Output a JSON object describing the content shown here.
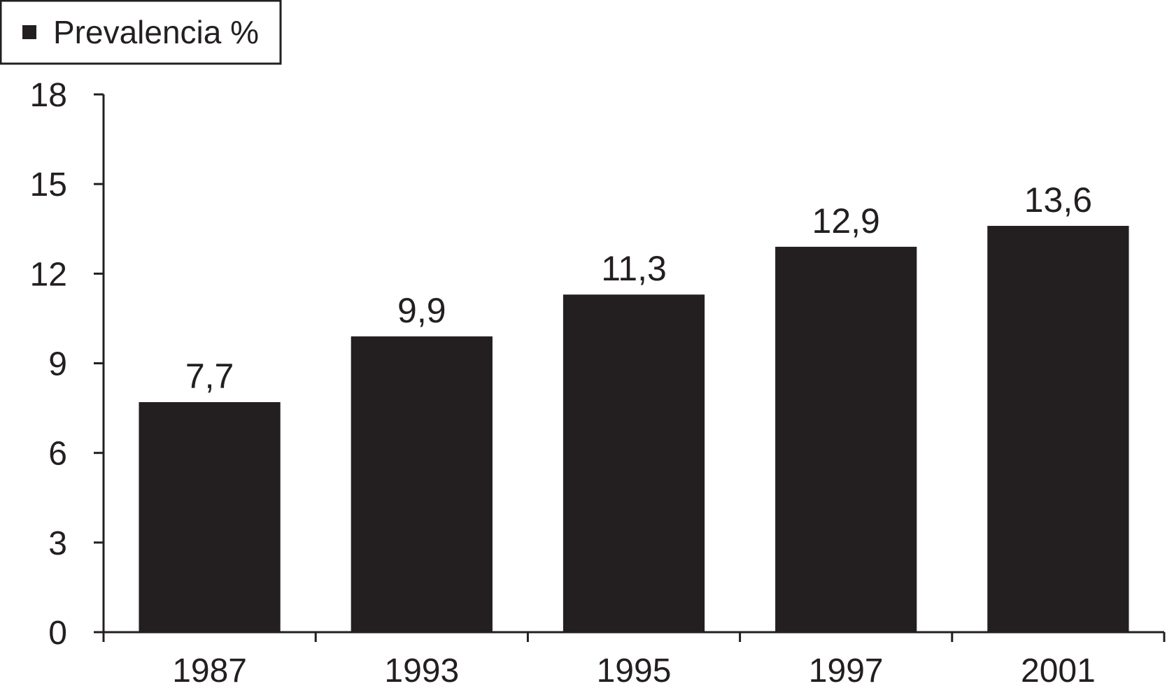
{
  "chart_data": {
    "type": "bar",
    "categories": [
      "1987",
      "1993",
      "1995",
      "1997",
      "2001"
    ],
    "series": [
      {
        "name": "Prevalencia %",
        "values": [
          7.7,
          9.9,
          11.3,
          12.9,
          13.6
        ],
        "labels": [
          "7,7",
          "9,9",
          "11,3",
          "12,9",
          "13,6"
        ]
      }
    ],
    "ylim": [
      0,
      18
    ],
    "yticks": [
      0,
      3,
      6,
      9,
      12,
      15,
      18
    ],
    "legend": {
      "label": "Prevalencia %",
      "placement": "top-left"
    },
    "grid": false,
    "colors": {
      "bar": "#231f20",
      "axis": "#231f20",
      "background": "#ffffff"
    }
  }
}
